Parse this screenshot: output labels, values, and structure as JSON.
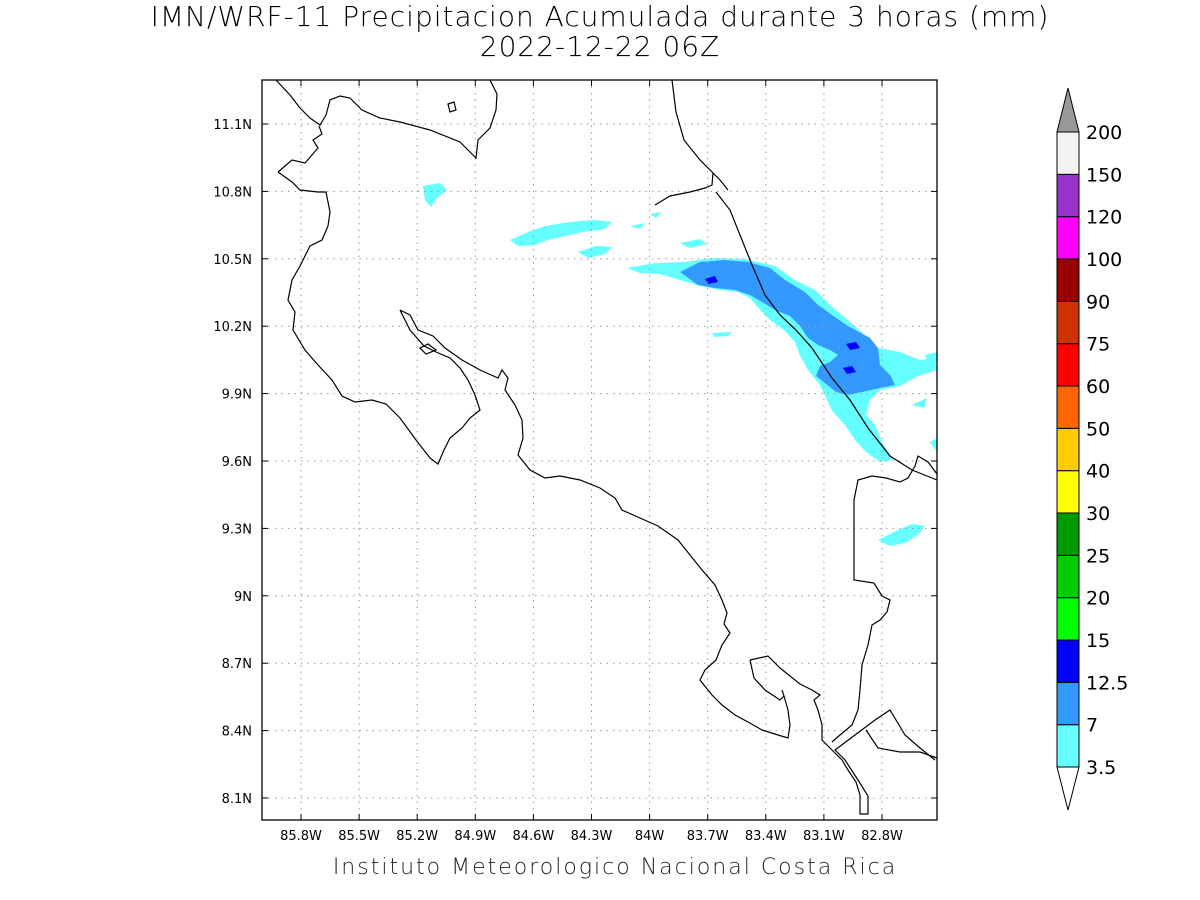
{
  "title": {
    "line1": "IMN/WRF-11 Precipitacion Acumulada durante 3 horas (mm)",
    "line2": "2022-12-22 06Z"
  },
  "footer": "Instituto Meteorologico Nacional Costa Rica",
  "map": {
    "lon_range": [
      -86.0,
      -82.4
    ],
    "lat_range": [
      8.0,
      11.3
    ],
    "lon_ticks": [
      "85.8W",
      "85.5W",
      "85.2W",
      "84.9W",
      "84.6W",
      "84.3W",
      "84W",
      "83.7W",
      "83.4W",
      "83.1W",
      "82.8W"
    ],
    "lat_ticks": [
      "11.1N",
      "10.8N",
      "10.5N",
      "10.2N",
      "9.9N",
      "9.6N",
      "9.3N",
      "9N",
      "8.7N",
      "8.4N",
      "8.1N"
    ],
    "grid": "dotted",
    "coastline_color": "#000000"
  },
  "legend": {
    "position": "right",
    "levels": [
      "3.5",
      "7",
      "12.5",
      "15",
      "20",
      "25",
      "30",
      "40",
      "50",
      "60",
      "75",
      "90",
      "100",
      "120",
      "150",
      "200"
    ],
    "colors": [
      "#66ffff",
      "#3399ff",
      "#0000ff",
      "#00ff00",
      "#00cc00",
      "#009900",
      "#ffff00",
      "#ffcc00",
      "#ff6600",
      "#ff0000",
      "#cc3300",
      "#990000",
      "#ff00ff",
      "#9933cc",
      "#f2f2f2"
    ],
    "top_arrow_color": "#999999",
    "bottom_arrow_color": "#ffffff"
  }
}
